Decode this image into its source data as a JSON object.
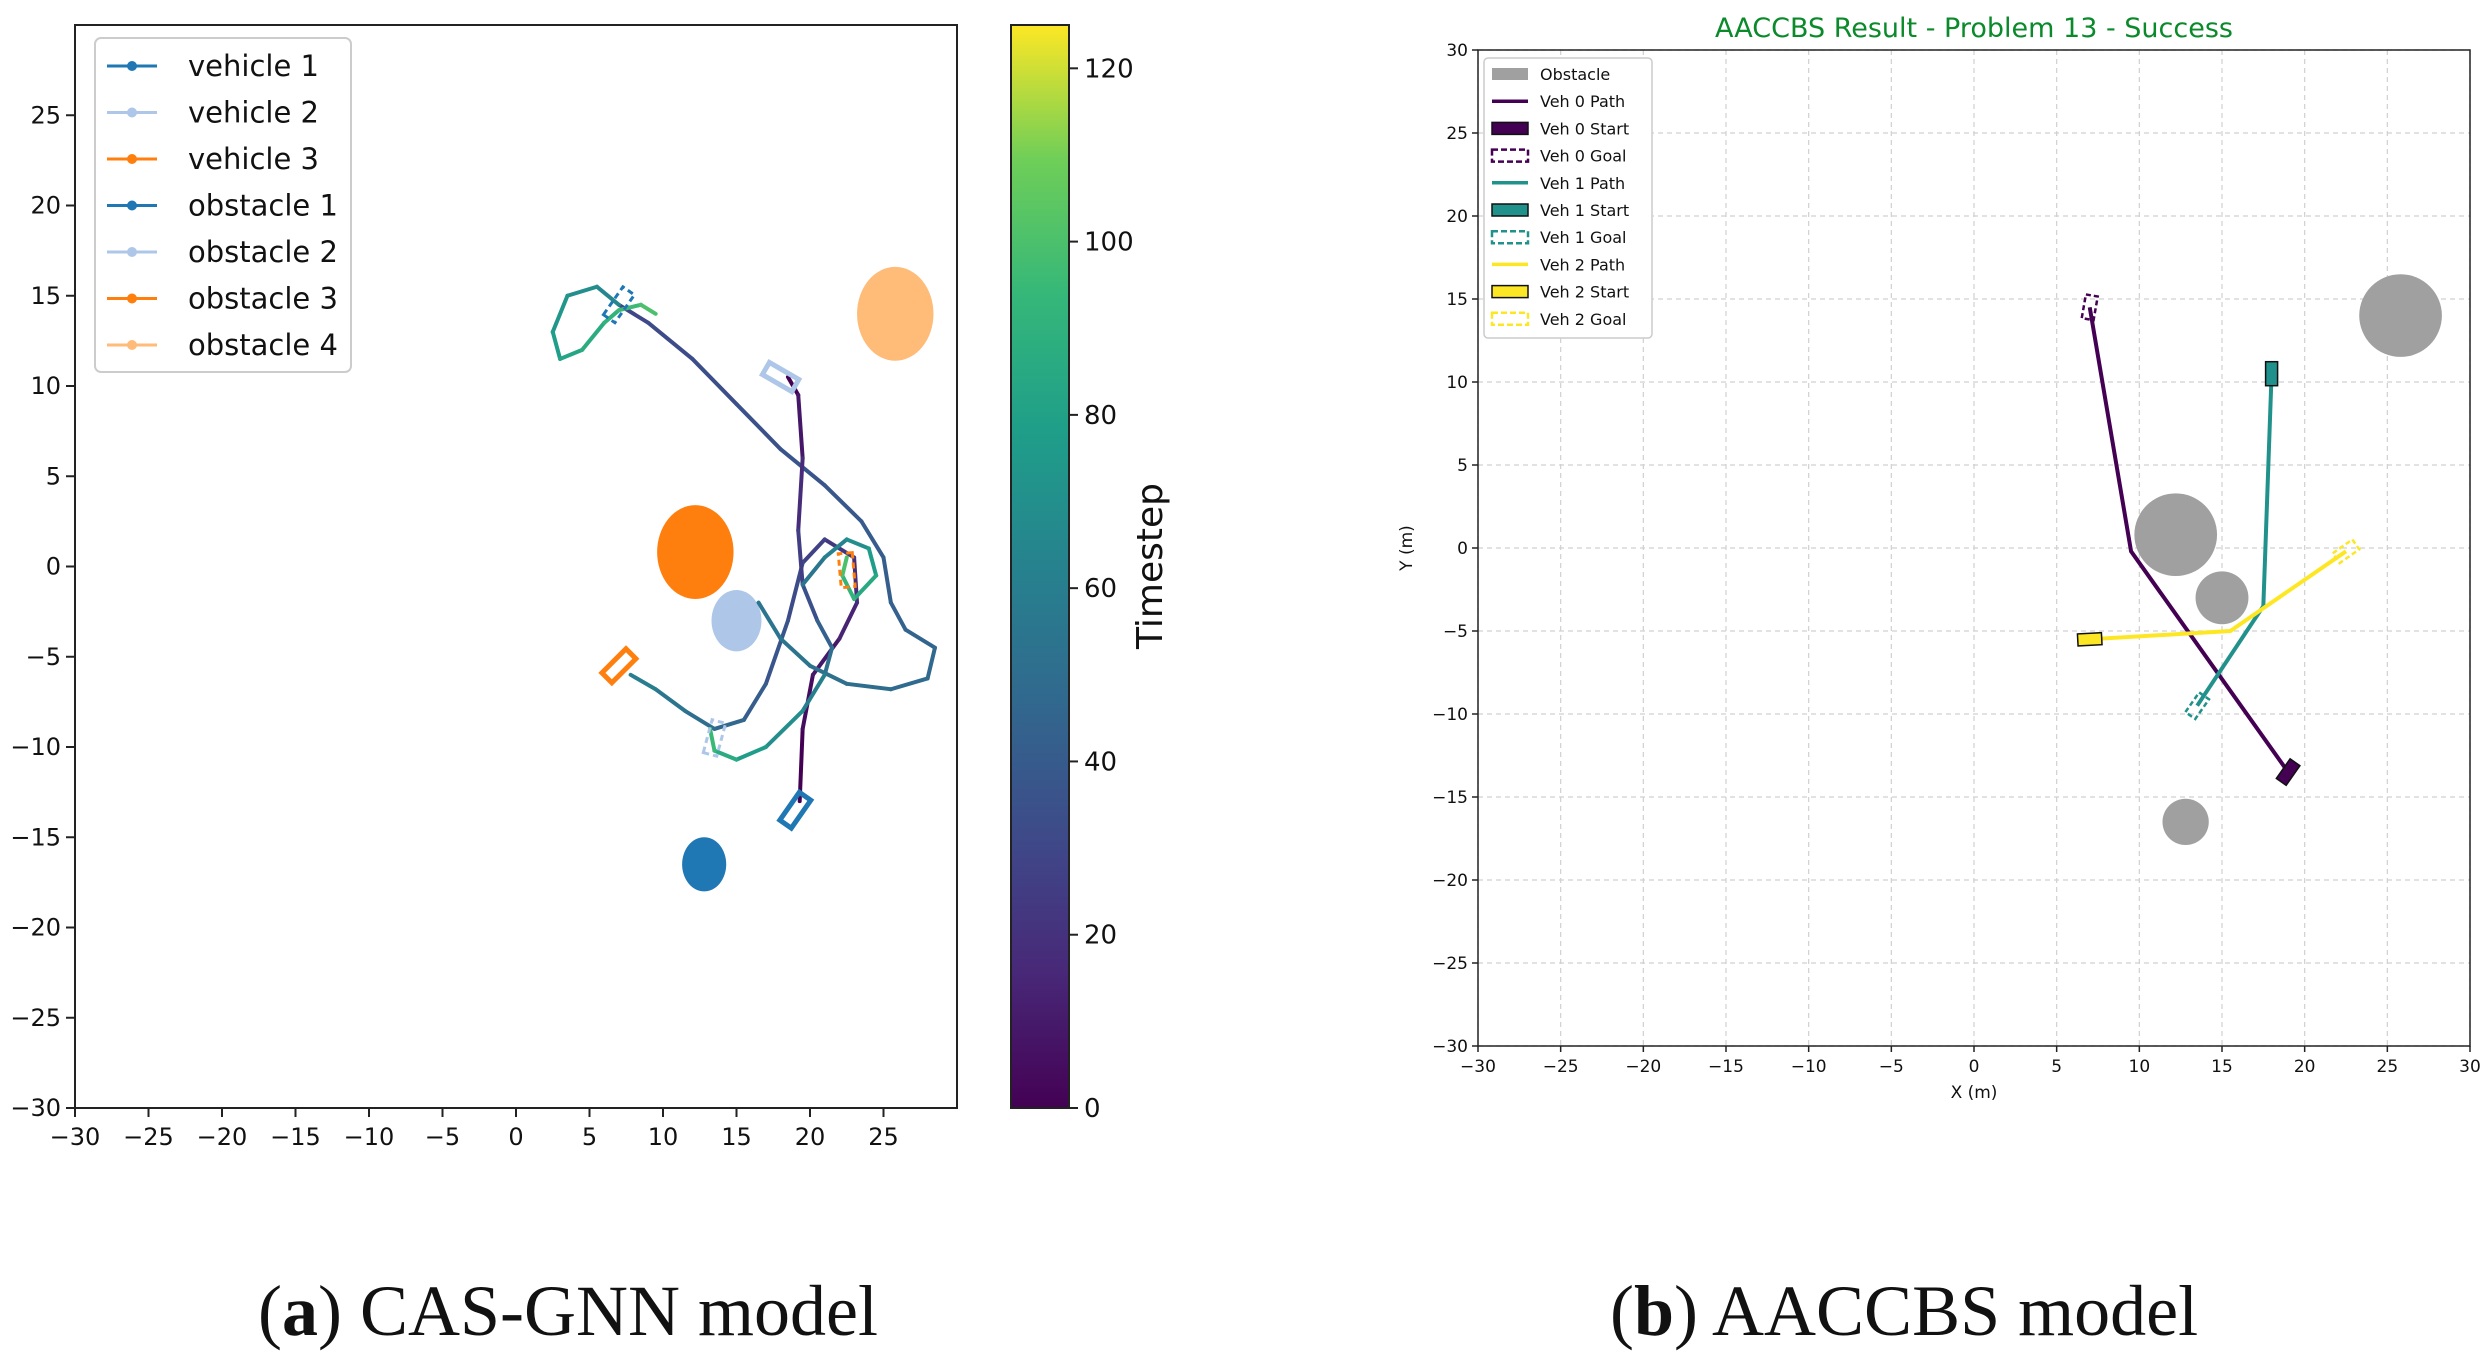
{
  "colors": {
    "vehicle_1": "#1f77b4",
    "vehicle_2": "#aec7e8",
    "vehicle_3": "#ff7f0e",
    "obstacle_1": "#1f77b4",
    "obstacle_2": "#aec7e8",
    "obstacle_3": "#ff7f0e",
    "obstacle_4": "#ffbb78",
    "gray_obstacle": "#a0a0a0",
    "veh0": "#440154",
    "veh1": "#21918c",
    "veh2": "#fde725",
    "title_b": "#0a8a2a"
  },
  "captions": {
    "a": {
      "letter": "a",
      "open": "(",
      "close": ")",
      "text": " CAS-GNN model"
    },
    "b": {
      "letter": "b",
      "open": "(",
      "close": ")",
      "text": " AACCBS model"
    }
  },
  "chart_data": [
    {
      "type": "line",
      "title": "",
      "xlabel": "",
      "ylabel": "",
      "xlim": [
        -30,
        30
      ],
      "ylim": [
        -30,
        30
      ],
      "xticks": [
        -30,
        -25,
        -20,
        -15,
        -10,
        -5,
        0,
        5,
        10,
        15,
        20,
        25
      ],
      "yticks": [
        -30,
        -25,
        -20,
        -15,
        -10,
        -5,
        0,
        5,
        10,
        15,
        20,
        25
      ],
      "grid": false,
      "legend_position": "top-left",
      "legend": [
        "vehicle 1",
        "vehicle 2",
        "vehicle 3",
        "obstacle 1",
        "obstacle 2",
        "obstacle 3",
        "obstacle 4"
      ],
      "colorbar": {
        "label": "Timestep",
        "range": [
          0,
          125
        ],
        "ticks": [
          0,
          20,
          40,
          60,
          80,
          100,
          120
        ],
        "colormap": "viridis"
      },
      "obstacles": [
        {
          "name": "obstacle 1",
          "center": [
            12.8,
            -16.5
          ],
          "rx": 1.5,
          "ry": 1.5
        },
        {
          "name": "obstacle 2",
          "center": [
            15.0,
            -3.0
          ],
          "rx": 1.7,
          "ry": 1.7
        },
        {
          "name": "obstacle 3",
          "center": [
            12.2,
            0.8
          ],
          "rx": 2.6,
          "ry": 2.6
        },
        {
          "name": "obstacle 4",
          "center": [
            25.8,
            14.0
          ],
          "rx": 2.6,
          "ry": 2.6
        }
      ],
      "vehicles": [
        {
          "name": "vehicle 1",
          "start": [
            19.0,
            -13.5
          ],
          "goal": [
            7.0,
            14.5
          ],
          "start_angle": 55,
          "goal_angle": 55
        },
        {
          "name": "vehicle 2",
          "start": [
            18.0,
            10.5
          ],
          "goal": [
            13.5,
            -9.5
          ],
          "start_angle": -30,
          "goal_angle": 75
        },
        {
          "name": "vehicle 3",
          "start": [
            7.0,
            -5.5
          ],
          "goal": [
            22.5,
            -0.2
          ],
          "start_angle": 45,
          "goal_angle": -85
        }
      ],
      "series": [
        {
          "name": "vehicle 1 path",
          "points": [
            [
              19.3,
              -13.0
            ],
            [
              19.5,
              -9.0
            ],
            [
              20.2,
              -6.0
            ],
            [
              22.0,
              -4.0
            ],
            [
              23.2,
              -2.0
            ],
            [
              23.0,
              0.5
            ],
            [
              21.0,
              1.5
            ],
            [
              19.5,
              0.2
            ],
            [
              18.5,
              -3.0
            ],
            [
              17.0,
              -6.5
            ],
            [
              15.5,
              -8.5
            ],
            [
              13.5,
              -9.0
            ],
            [
              11.5,
              -8.0
            ],
            [
              9.5,
              -6.8
            ],
            [
              7.8,
              -6.0
            ]
          ],
          "t0": 0,
          "t1": 60
        },
        {
          "name": "vehicle 1 path b",
          "points": [
            [
              7.0,
              14.5
            ],
            [
              9.0,
              13.5
            ],
            [
              12.0,
              11.5
            ],
            [
              15.0,
              9.0
            ],
            [
              18.0,
              6.5
            ],
            [
              21.0,
              4.5
            ],
            [
              23.5,
              2.5
            ],
            [
              25.0,
              0.5
            ],
            [
              25.5,
              -2.0
            ],
            [
              26.5,
              -3.5
            ],
            [
              28.5,
              -4.5
            ],
            [
              28.0,
              -6.2
            ],
            [
              25.5,
              -6.8
            ],
            [
              22.5,
              -6.5
            ],
            [
              20.0,
              -5.5
            ],
            [
              18.0,
              -4.0
            ],
            [
              16.5,
              -2.0
            ]
          ],
          "t0": 30,
          "t1": 55
        },
        {
          "name": "vehicle 2 path",
          "points": [
            [
              18.5,
              10.5
            ],
            [
              19.2,
              9.5
            ],
            [
              19.5,
              6.0
            ],
            [
              19.2,
              2.0
            ],
            [
              19.5,
              -1.0
            ],
            [
              20.5,
              -3.0
            ],
            [
              21.5,
              -4.5
            ],
            [
              21.0,
              -6.0
            ],
            [
              19.5,
              -8.0
            ],
            [
              17.0,
              -10.0
            ],
            [
              15.0,
              -10.7
            ],
            [
              13.5,
              -10.2
            ],
            [
              13.2,
              -9.0
            ]
          ],
          "t0": 0,
          "t1": 95
        },
        {
          "name": "vehicle 2 loop",
          "points": [
            [
              19.5,
              -1.0
            ],
            [
              21.0,
              0.5
            ],
            [
              22.5,
              1.5
            ],
            [
              24.0,
              1.0
            ],
            [
              24.5,
              -0.5
            ],
            [
              23.0,
              -1.8
            ],
            [
              22.2,
              -0.5
            ],
            [
              22.5,
              0.5
            ]
          ],
          "t0": 55,
          "t1": 100
        },
        {
          "name": "vehicle 3 loop",
          "points": [
            [
              7.0,
              14.5
            ],
            [
              5.5,
              15.5
            ],
            [
              3.5,
              15.0
            ],
            [
              2.5,
              13.0
            ],
            [
              3.0,
              11.5
            ],
            [
              4.5,
              12.0
            ],
            [
              6.0,
              13.5
            ],
            [
              7.0,
              14.2
            ],
            [
              8.5,
              14.5
            ],
            [
              9.5,
              14.0
            ]
          ],
          "t0": 65,
          "t1": 100
        }
      ]
    },
    {
      "type": "line",
      "title": "AACCBS Result - Problem 13 - Success",
      "xlabel": "X (m)",
      "ylabel": "Y (m)",
      "xlim": [
        -30,
        30
      ],
      "ylim": [
        -30,
        30
      ],
      "xticks": [
        -30,
        -25,
        -20,
        -15,
        -10,
        -5,
        0,
        5,
        10,
        15,
        20,
        25,
        30
      ],
      "yticks": [
        -30,
        -25,
        -20,
        -15,
        -10,
        -5,
        0,
        5,
        10,
        15,
        20,
        25,
        30
      ],
      "grid": true,
      "legend_position": "top-left",
      "legend": [
        "Obstacle",
        "Veh 0 Path",
        "Veh 0 Start",
        "Veh 0 Goal",
        "Veh 1 Path",
        "Veh 1 Start",
        "Veh 1 Goal",
        "Veh 2 Path",
        "Veh 2 Start",
        "Veh 2 Goal"
      ],
      "obstacles": [
        {
          "center": [
            25.8,
            14.0
          ],
          "r": 2.5
        },
        {
          "center": [
            12.2,
            0.8
          ],
          "r": 2.5
        },
        {
          "center": [
            15.0,
            -3.0
          ],
          "r": 1.6
        },
        {
          "center": [
            12.8,
            -16.5
          ],
          "r": 1.4
        }
      ],
      "series": [
        {
          "name": "Veh 0 Path",
          "color": "veh0",
          "points": [
            [
              7.0,
              14.5
            ],
            [
              9.5,
              -0.2
            ],
            [
              19.0,
              -13.5
            ]
          ]
        },
        {
          "name": "Veh 1 Path",
          "color": "veh1",
          "points": [
            [
              18.0,
              10.5
            ],
            [
              17.5,
              -3.5
            ],
            [
              13.5,
              -9.5
            ]
          ]
        },
        {
          "name": "Veh 2 Path",
          "color": "veh2",
          "points": [
            [
              7.0,
              -5.5
            ],
            [
              15.5,
              -5.0
            ],
            [
              22.5,
              -0.2
            ]
          ]
        }
      ],
      "starts": [
        {
          "name": "Veh 0 Start",
          "color": "veh0",
          "pos": [
            19.0,
            -13.5
          ],
          "angle": 55
        },
        {
          "name": "Veh 1 Start",
          "color": "veh1",
          "pos": [
            18.0,
            10.5
          ],
          "angle": 90
        },
        {
          "name": "Veh 2 Start",
          "color": "veh2",
          "pos": [
            7.0,
            -5.5
          ],
          "angle": 3
        }
      ],
      "goals": [
        {
          "name": "Veh 0 Goal",
          "color": "veh0",
          "pos": [
            7.0,
            14.5
          ],
          "angle": 80
        },
        {
          "name": "Veh 1 Goal",
          "color": "veh1",
          "pos": [
            13.5,
            -9.5
          ],
          "angle": 55
        },
        {
          "name": "Veh 2 Goal",
          "color": "veh2",
          "pos": [
            22.5,
            -0.2
          ],
          "angle": 35
        }
      ]
    }
  ]
}
